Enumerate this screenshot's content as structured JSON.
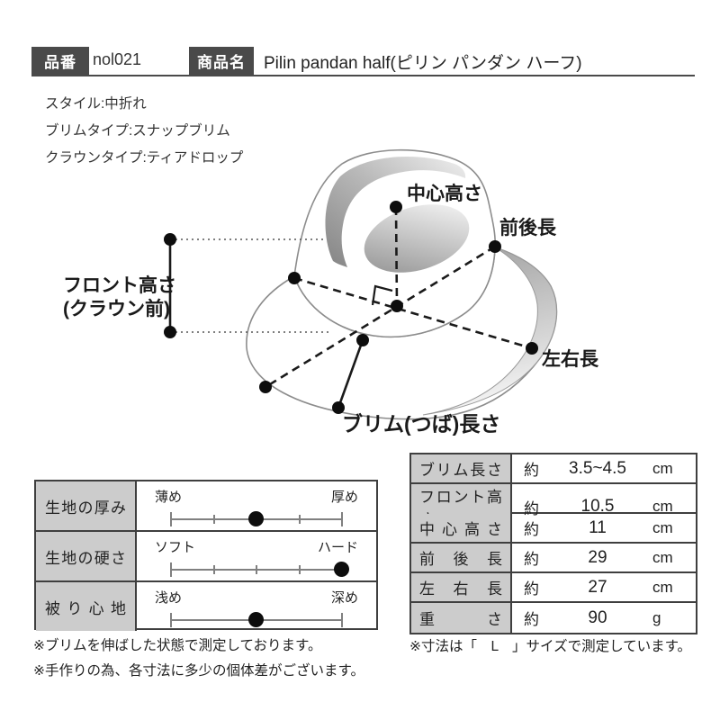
{
  "header": {
    "part_no_label": "品番",
    "part_no_value": "nol021",
    "product_label": "商品名",
    "product_value": "Pilin pandan half(ピリン パンダン ハーフ)"
  },
  "specs": [
    "スタイル:中折れ",
    "ブリムタイプ:スナップブリム",
    "クラウンタイプ:ティアドロップ"
  ],
  "diagram": {
    "labels": {
      "center_height": "中心高さ",
      "front_back_length": "前後長",
      "front_height_line1": "フロント高さ",
      "front_height_line2": "(クラウン前)",
      "left_right_length": "左右長",
      "brim_length": "ブリム(つば)長さ"
    }
  },
  "left_table": {
    "rows": [
      {
        "label": "生地の厚み",
        "min": "薄め",
        "max": "厚め",
        "ticks": [
          0,
          25,
          50,
          75,
          100
        ],
        "value_percent": 50
      },
      {
        "label": "生地の硬さ",
        "min": "ソフト",
        "max": "ハード",
        "ticks": [
          0,
          25,
          50,
          75,
          100
        ],
        "value_percent": 100
      },
      {
        "label": "被り心地",
        "min": "浅め",
        "max": "深め",
        "ticks": [
          0,
          100
        ],
        "value_percent": 50
      }
    ]
  },
  "measure_table": {
    "rows": [
      {
        "label": "ブリム長さ",
        "approx": "約",
        "value": "3.5~4.5",
        "unit": "cm"
      },
      {
        "label": "フロント高さ",
        "approx": "約",
        "value": "10.5",
        "unit": "cm"
      },
      {
        "label": "中心高さ",
        "approx": "約",
        "value": "11",
        "unit": "cm"
      },
      {
        "label": "前後長",
        "approx": "約",
        "value": "29",
        "unit": "cm"
      },
      {
        "label": "左右長",
        "approx": "約",
        "value": "27",
        "unit": "cm"
      },
      {
        "label": "重さ",
        "approx": "約",
        "value": "90",
        "unit": "g"
      }
    ]
  },
  "notes": {
    "left": [
      "※ブリムを伸ばした状態で測定しております。",
      "※手作りの為、各寸法に多少の個体差がございます。"
    ],
    "right": "※寸法は「　L　」サイズで測定しています。"
  },
  "colors": {
    "accent_dark": "#4a4a4a",
    "cell_gray": "#cccccc",
    "line_black": "#1a1a1a",
    "hat_outline": "#8c8c8c"
  }
}
